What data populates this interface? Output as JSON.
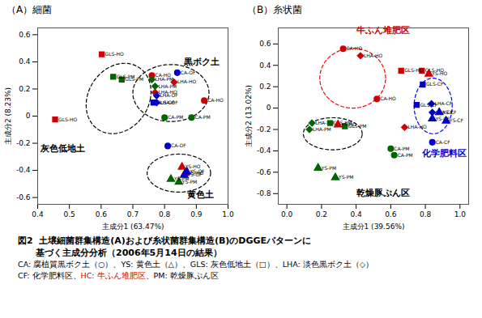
{
  "chart_data": [
    {
      "type": "scatter",
      "title": "（A）細菌",
      "xlabel": "主成分1 (63.47%)",
      "ylabel": "主成分2 (8.23%)",
      "xlim": [
        0.4,
        1.0
      ],
      "ylim": [
        -0.65,
        0.65
      ],
      "xticks": [
        0.4,
        0.5,
        0.6,
        0.7,
        0.8,
        0.9,
        {
          "value": 1.0,
          "label": "1.0"
        }
      ],
      "yticks": [
        -0.6,
        -0.4,
        -0.2,
        0,
        0.2,
        0.4,
        0.6
      ],
      "series": [
        {
          "name": "GLS-HO",
          "color": "#cc0000",
          "marker": "square",
          "x": [
            0.602,
            0.455
          ],
          "values": [
            0.455,
            -0.025
          ]
        },
        {
          "name": "GLS-PM",
          "color": "#006600",
          "marker": "square",
          "x": [
            0.638,
            0.665
          ],
          "values": [
            0.29,
            0.27
          ]
        },
        {
          "name": "GLS-OF",
          "color": "#0000cc",
          "marker": "square",
          "x": [
            0.765
          ],
          "values": [
            0.1
          ]
        },
        {
          "name": "CA-HO",
          "color": "#cc0000",
          "marker": "circle",
          "x": [
            0.76,
            0.925
          ],
          "values": [
            0.3,
            0.115
          ]
        },
        {
          "name": "CA-PM",
          "color": "#006600",
          "marker": "circle",
          "x": [
            0.885,
            0.8
          ],
          "values": [
            -0.01,
            -0.01
          ]
        },
        {
          "name": "CA-OF",
          "color": "#0000cc",
          "marker": "circle",
          "x": [
            0.84,
            0.81
          ],
          "values": [
            0.32,
            -0.22
          ]
        },
        {
          "name": "LHA-HO",
          "color": "#cc0000",
          "marker": "diamond",
          "x": [
            0.77,
            0.83
          ],
          "values": [
            0.175,
            0.25
          ]
        },
        {
          "name": "LHA-PM",
          "color": "#006600",
          "marker": "diamond",
          "x": [
            0.76,
            0.77
          ],
          "values": [
            0.27,
            0.22
          ]
        },
        {
          "name": "LHA-OF",
          "color": "#0000cc",
          "marker": "diamond",
          "x": [
            0.775,
            0.775
          ],
          "values": [
            0.1,
            0.15
          ]
        },
        {
          "name": "YS-HO",
          "color": "#cc0000",
          "marker": "triangle",
          "x": [
            0.855,
            0.865
          ],
          "values": [
            -0.375,
            -0.42
          ]
        },
        {
          "name": "YS-PM",
          "color": "#006600",
          "marker": "triangle",
          "x": [
            0.82,
            0.845
          ],
          "values": [
            -0.465,
            -0.485
          ]
        },
        {
          "name": "YS-OF",
          "color": "#0000cc",
          "marker": "triangle",
          "x": [
            0.87,
            0.862
          ],
          "values": [
            -0.41,
            -0.435
          ]
        }
      ],
      "ellipses": [
        {
          "cx": 0.655,
          "cy": 0.13,
          "width": 0.2,
          "height": 0.52,
          "angle": -5,
          "color": "black",
          "line_style": "dashed"
        },
        {
          "cx": 0.82,
          "cy": 0.17,
          "width": 0.24,
          "height": 0.42,
          "angle": 0,
          "color": "black",
          "line_style": "dashed"
        },
        {
          "cx": 0.845,
          "cy": -0.42,
          "width": 0.2,
          "height": 0.28,
          "angle": 0,
          "color": "black",
          "line_style": "dashed"
        }
      ],
      "annotations": [
        {
          "text": "黒ボク土",
          "x": 0.86,
          "y": 0.38,
          "color": "black"
        },
        {
          "text": "灰色低地土",
          "x": 0.41,
          "y": -0.26,
          "color": "black"
        },
        {
          "text": "黄色土",
          "x": 0.87,
          "y": -0.6,
          "color": "black"
        }
      ]
    },
    {
      "type": "scatter",
      "title": "（B）糸状菌",
      "xlabel": "主成分1 (39.56%)",
      "ylabel": "主成分2 (13.02%)",
      "xlim": [
        -0.05,
        1.05
      ],
      "ylim": [
        -0.9,
        0.75
      ],
      "xticks": [
        {
          "value": 0.0,
          "label": "0.0"
        },
        0.2,
        0.4,
        0.6,
        0.8,
        {
          "value": 1.0,
          "label": "1.0"
        }
      ],
      "yticks": [
        -0.8,
        -0.6,
        -0.4,
        -0.2,
        0,
        0.2,
        0.4,
        0.6
      ],
      "series": [
        {
          "name": "CA-HO",
          "color": "#cc0000",
          "marker": "circle",
          "x": [
            0.325,
            0.52
          ],
          "values": [
            0.555,
            0.085
          ]
        },
        {
          "name": "CA-CF",
          "color": "#0000cc",
          "marker": "circle",
          "x": [
            0.84
          ],
          "values": [
            -0.32
          ]
        },
        {
          "name": "CA-PM",
          "color": "#006600",
          "marker": "circle",
          "x": [
            0.6,
            0.62
          ],
          "values": [
            -0.38,
            -0.44
          ]
        },
        {
          "name": "LHA-HO",
          "color": "#cc0000",
          "marker": "diamond",
          "x": [
            0.425,
            0.68
          ],
          "values": [
            0.49,
            -0.18
          ]
        },
        {
          "name": "LHA-PM",
          "color": "#006600",
          "marker": "diamond",
          "x": [
            0.13,
            0.145
          ],
          "values": [
            -0.2,
            -0.14
          ]
        },
        {
          "name": "LHA-CF",
          "color": "#0000cc",
          "marker": "diamond",
          "x": [
            0.84,
            0.835
          ],
          "values": [
            -0.04,
            0.04
          ]
        },
        {
          "name": "GLS-HO",
          "color": "#cc0000",
          "marker": "square",
          "x": [
            0.78,
            0.66
          ],
          "values": [
            0.35,
            0.35
          ]
        },
        {
          "name": "GLS-PM",
          "color": "#006600",
          "marker": "square",
          "x": [
            0.25,
            0.335
          ],
          "values": [
            -0.14,
            -0.17
          ]
        },
        {
          "name": "GLS-CF",
          "color": "#0000cc",
          "marker": "square",
          "x": [
            0.75,
            0.785
          ],
          "values": [
            0.03,
            0.22
          ]
        },
        {
          "name": "YS-HO",
          "color": "#cc0000",
          "marker": "triangle",
          "x": [
            0.82,
            0.295
          ],
          "values": [
            0.32,
            -0.155
          ]
        },
        {
          "name": "YS-PM",
          "color": "#006600",
          "marker": "triangle",
          "x": [
            0.18,
            0.28
          ],
          "values": [
            -0.56,
            -0.65
          ]
        },
        {
          "name": "YS-CF",
          "color": "#0000cc",
          "marker": "triangle",
          "x": [
            0.84,
            0.88,
            0.92
          ],
          "values": [
            -0.1,
            -0.04,
            -0.12
          ]
        }
      ],
      "ellipses": [
        {
          "cx": 0.38,
          "cy": 0.28,
          "width": 0.38,
          "height": 0.56,
          "angle": 0,
          "color": "red",
          "line_style": "dashed"
        },
        {
          "cx": 0.845,
          "cy": 0.02,
          "width": 0.22,
          "height": 0.52,
          "angle": 0,
          "color": "blue",
          "line_style": "dashed"
        },
        {
          "cx": 0.265,
          "cy": -0.24,
          "width": 0.34,
          "height": 0.3,
          "angle": 0,
          "color": "black",
          "line_style": "dashed"
        }
      ],
      "annotations": [
        {
          "text": "牛ふん堆肥区",
          "x": 0.4,
          "y": 0.7,
          "color": "#cc0000"
        },
        {
          "text": "化学肥料区",
          "x": 0.78,
          "y": -0.45,
          "color": "#0000cc"
        },
        {
          "text": "乾燥豚ぷん区",
          "x": 0.4,
          "y": -0.82,
          "color": "black"
        }
      ]
    }
  ],
  "caption": [
    "図2  土壌細菌群集構造(A)および糸状菌群集構造(B)のDGGEパターンに",
    "　　基づく主成分分析（2006年5月14日の結果）"
  ],
  "legend_lines": [
    [
      {
        "text": "CA: 腐植質黒ボク土（○）、YS: 黄色土（△）、GLS: 灰色低地土（□）、LHA: 淡色黒ボク土（◇）",
        "color": "black"
      }
    ],
    [
      {
        "text": "CF: 化学肥料区、",
        "color": "black"
      },
      {
        "text": "HC: 牛ふん堆肥区",
        "color": "#cc0000"
      },
      {
        "text": "、PM: 乾燥豚ぷん区",
        "color": "black"
      }
    ]
  ]
}
